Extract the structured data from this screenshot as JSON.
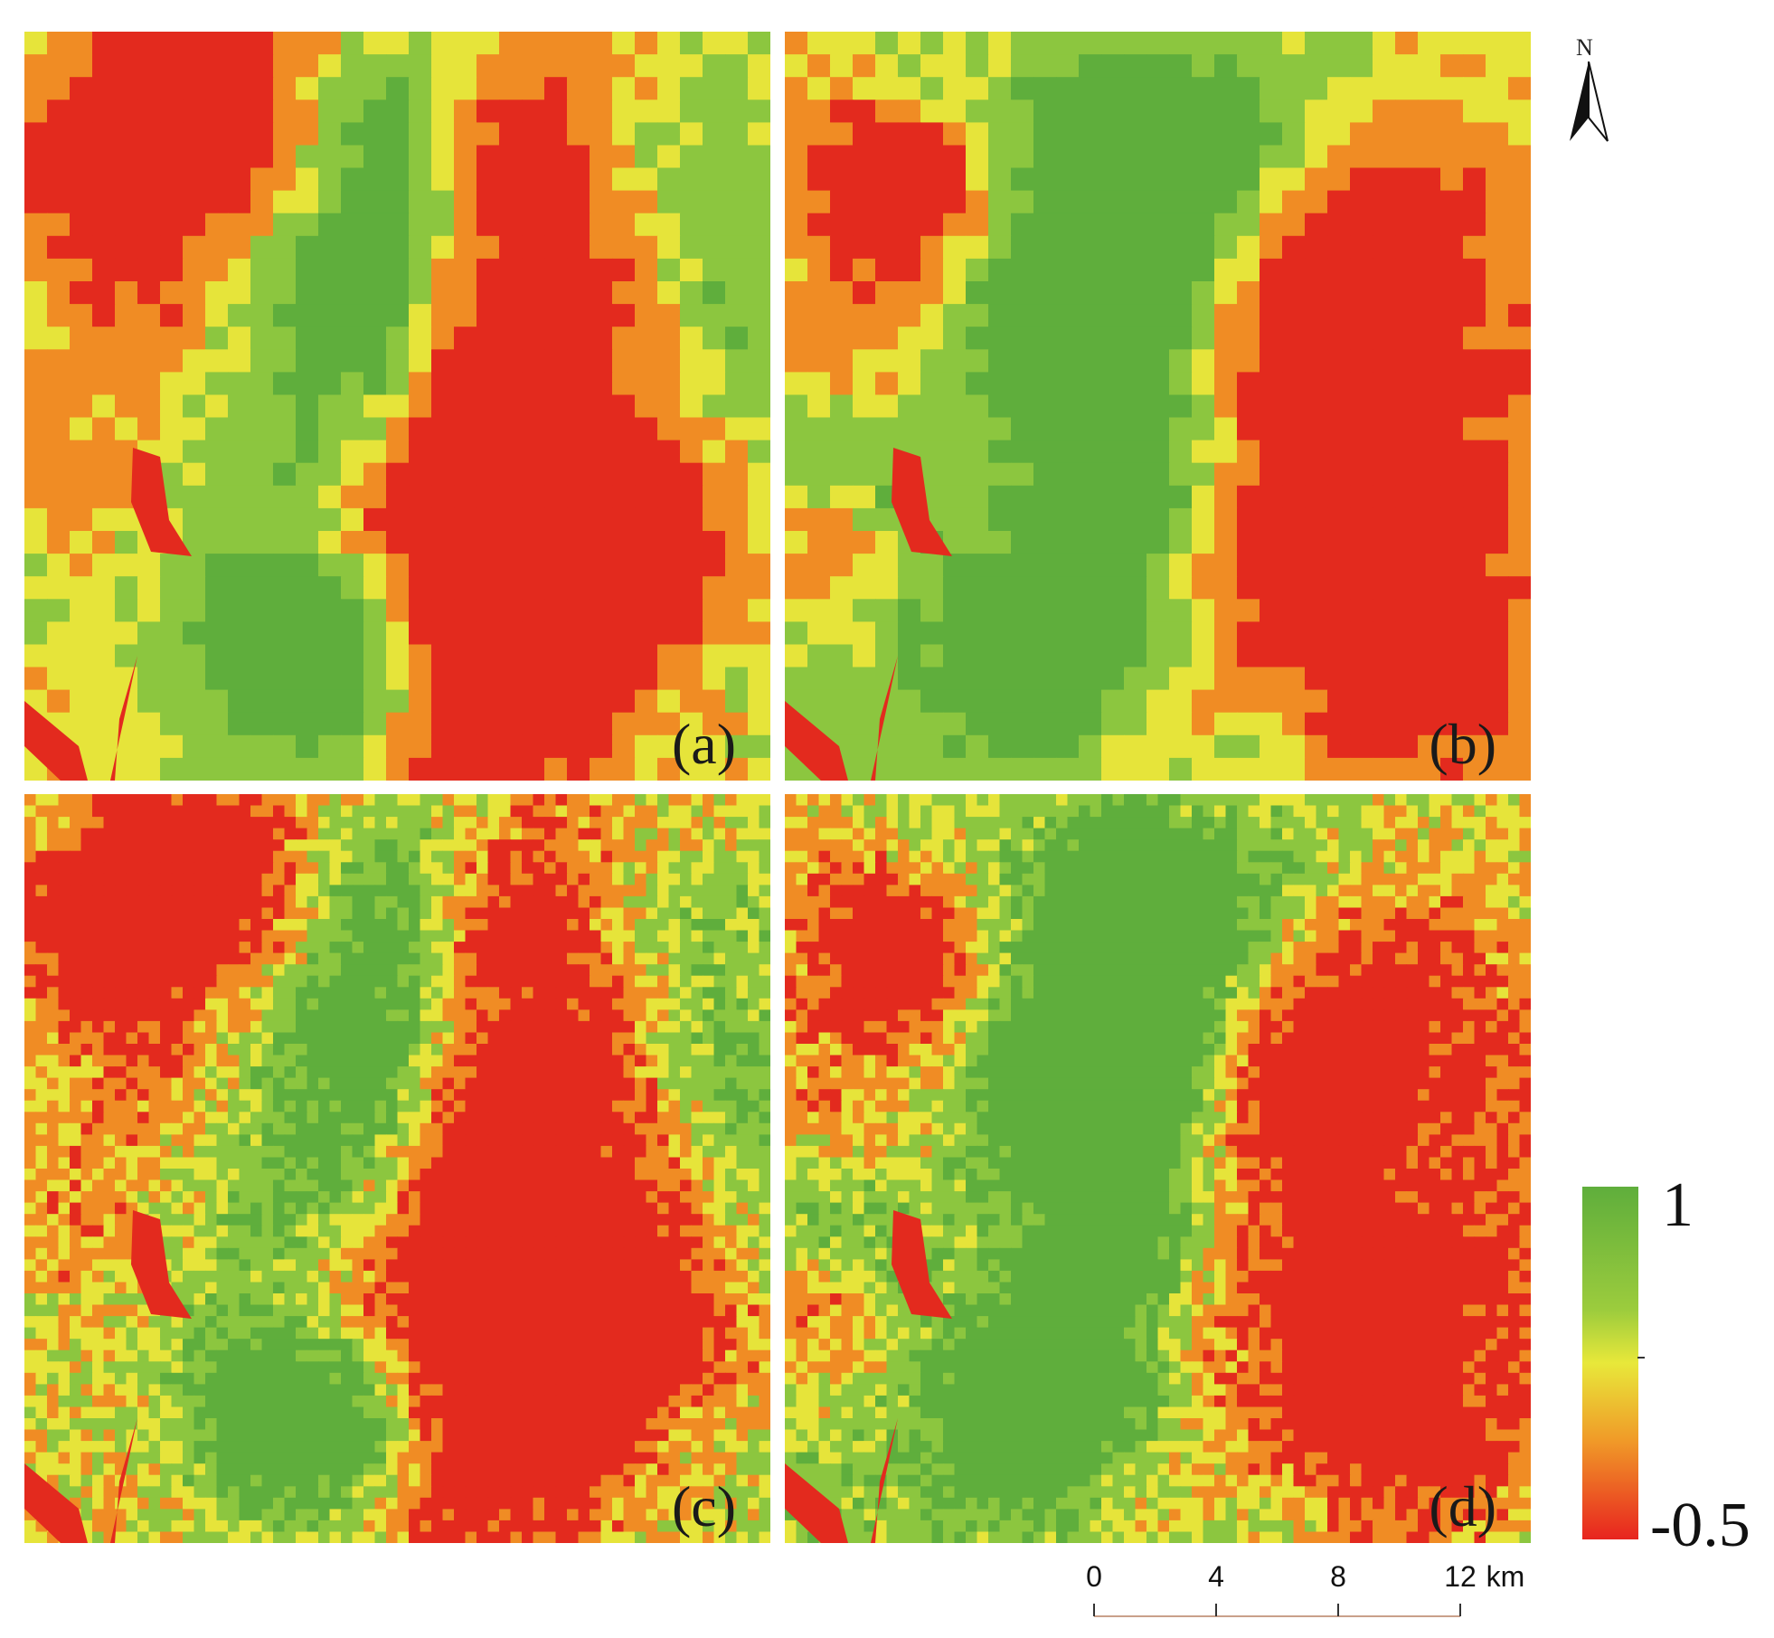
{
  "panels": [
    {
      "id": "a",
      "label": "(a)",
      "style": "coarse"
    },
    {
      "id": "b",
      "label": "(b)",
      "style": "coarse"
    },
    {
      "id": "c",
      "label": "(c)",
      "style": "fine"
    },
    {
      "id": "d",
      "label": "(d)",
      "style": "fine"
    }
  ],
  "north_arrow": {
    "label": "N",
    "icon": "north-arrow-icon"
  },
  "legend": {
    "max_label": "1",
    "min_label": "-0.5",
    "colors": {
      "high": "#6cb33f",
      "mid": "#e8e83a",
      "low": "#e8241f"
    }
  },
  "scale_bar": {
    "ticks": [
      "0",
      "4",
      "8",
      "12"
    ],
    "unit": "km"
  },
  "palette": {
    "dark_green": "#5fae3c",
    "green": "#8cc63f",
    "yellow": "#e6e43a",
    "orange": "#f08c24",
    "red": "#e32a1e"
  }
}
